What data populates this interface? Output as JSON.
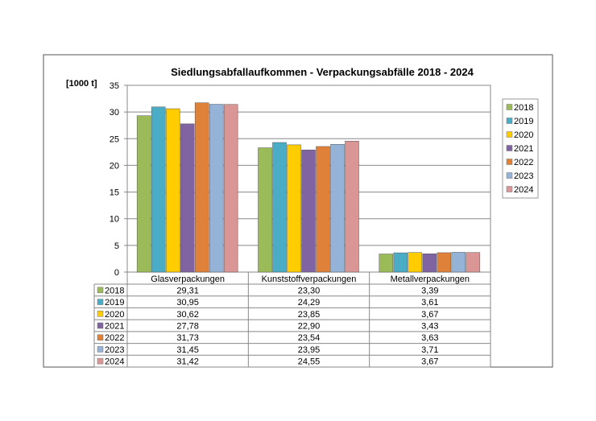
{
  "chart_data": {
    "type": "bar",
    "title": "Siedlungsabfallaufkommen - Verpackungsabfälle 2018 - 2024",
    "ylabel": "[1000 t]",
    "ylim": [
      0,
      35
    ],
    "yticks": [
      "0",
      "5",
      "10",
      "15",
      "20",
      "25",
      "30",
      "35"
    ],
    "grid": true,
    "legend_position": "right",
    "categories": [
      "Glasverpackungen",
      "Kunststoffverpackungen",
      "Metallverpackungen"
    ],
    "series": [
      {
        "name": "2018",
        "color": "#9bbb59",
        "values": [
          29.31,
          23.3,
          3.39
        ],
        "labels": [
          "29,31",
          "23,30",
          "3,39"
        ]
      },
      {
        "name": "2019",
        "color": "#4bacc6",
        "values": [
          30.95,
          24.29,
          3.61
        ],
        "labels": [
          "30,95",
          "24,29",
          "3,61"
        ]
      },
      {
        "name": "2020",
        "color": "#ffcc00",
        "values": [
          30.62,
          23.85,
          3.67
        ],
        "labels": [
          "30,62",
          "23,85",
          "3,67"
        ]
      },
      {
        "name": "2021",
        "color": "#8064a2",
        "values": [
          27.78,
          22.9,
          3.43
        ],
        "labels": [
          "27,78",
          "22,90",
          "3,43"
        ]
      },
      {
        "name": "2022",
        "color": "#e0813a",
        "values": [
          31.73,
          23.54,
          3.63
        ],
        "labels": [
          "31,73",
          "23,54",
          "3,63"
        ]
      },
      {
        "name": "2023",
        "color": "#95b3d7",
        "values": [
          31.45,
          23.95,
          3.71
        ],
        "labels": [
          "31,45",
          "23,95",
          "3,71"
        ]
      },
      {
        "name": "2024",
        "color": "#d99694",
        "values": [
          31.42,
          24.55,
          3.67
        ],
        "labels": [
          "31,42",
          "24,55",
          "3,67"
        ]
      }
    ],
    "data_table": true
  }
}
